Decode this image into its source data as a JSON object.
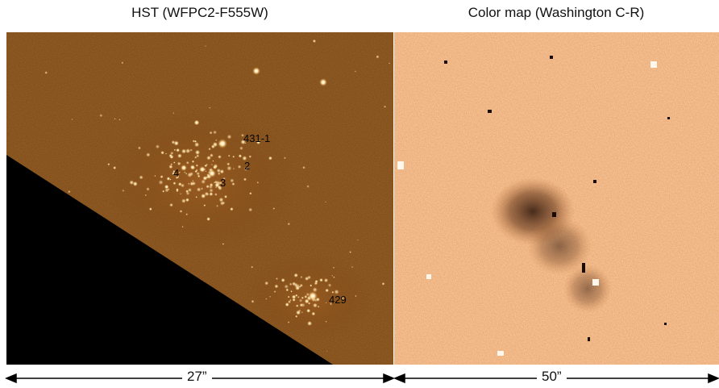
{
  "panels": {
    "left": {
      "title": "HST (WFPC2-F555W)",
      "scale": "27”"
    },
    "right": {
      "title": "Color map (Washington C-R)",
      "scale": "50”"
    }
  },
  "labels": {
    "cluster_431_1": "431-1",
    "cluster_2": "2",
    "cluster_3": "3",
    "cluster_4": "4",
    "cluster_429": "429"
  },
  "colors": {
    "hst_background": "#7a4512",
    "hst_star": "#ffe0a0",
    "masked_region": "#000000",
    "colormap_background": "#eea569",
    "colormap_dark": "#4a2a18"
  }
}
